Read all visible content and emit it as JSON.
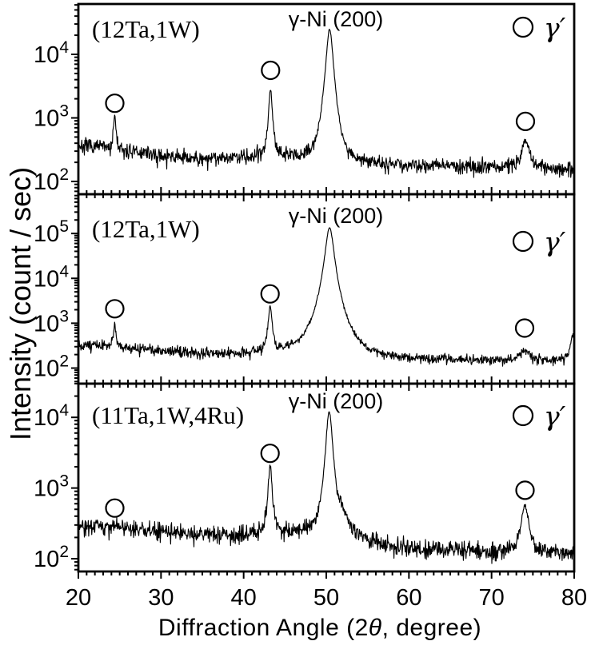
{
  "figure": {
    "xlabel_prefix": "Diffraction Angle (2",
    "xlabel_theta": "θ",
    "xlabel_suffix": ", degree)",
    "ylabel": "Intensity (count / sec)"
  },
  "styles": {
    "background": "#ffffff",
    "line_color": "#000000"
  },
  "chart_data": {
    "type": "line",
    "title": "",
    "xlabel": "Diffraction Angle (2θ, degree)",
    "ylabel": "Intensity (count / sec)",
    "xlim": [
      20,
      80
    ],
    "x_major_ticks": [
      20,
      30,
      40,
      50,
      60,
      70,
      80
    ],
    "x_minor_tick_step": 1,
    "y_scale": "log",
    "grid": false,
    "legend_position": "top-right-inside",
    "panels": [
      {
        "label": "(12Ta,1W)",
        "peak_annotation": "γ-Ni (200)",
        "legend_label": "γ′",
        "legend_marker": "open-circle",
        "ylim": [
          63,
          62000
        ],
        "y_major_tick_exponents": [
          2,
          3,
          4
        ],
        "baseline_points": [
          [
            20,
            370
          ],
          [
            23,
            345
          ],
          [
            26,
            300
          ],
          [
            30,
            252
          ],
          [
            34,
            232
          ],
          [
            38,
            240
          ],
          [
            41,
            255
          ],
          [
            44,
            258
          ],
          [
            46,
            245
          ],
          [
            48,
            230
          ],
          [
            50,
            215
          ],
          [
            53,
            205
          ],
          [
            57,
            190
          ],
          [
            62,
            180
          ],
          [
            68,
            176
          ],
          [
            72,
            170
          ],
          [
            76,
            162
          ],
          [
            80,
            158
          ]
        ],
        "peaks": [
          {
            "center": 24.4,
            "amplitude": 820,
            "fwhm": 0.3,
            "tail_power": 1.2
          },
          {
            "center": 43.25,
            "amplitude": 2550,
            "fwhm": 0.45,
            "tail_power": 1.3
          },
          {
            "center": 50.4,
            "amplitude": 24500,
            "fwhm": 0.85,
            "tail_power": 1.6
          },
          {
            "center": 74.1,
            "amplitude": 270,
            "fwhm": 1.1,
            "tail_power": 1.3
          }
        ],
        "gamma_prime_markers": [
          {
            "x": 24.4,
            "y": 1700
          },
          {
            "x": 43.25,
            "y": 5600
          },
          {
            "x": 74.1,
            "y": 880
          }
        ],
        "noise_sigma_decades": 0.05,
        "noise_seed": 7
      },
      {
        "label": "(12Ta,1W)",
        "peak_annotation": "γ-Ni (200)",
        "legend_label": "γ′",
        "legend_marker": "open-circle",
        "ylim": [
          45,
          750000
        ],
        "y_major_tick_exponents": [
          2,
          3,
          4,
          5
        ],
        "baseline_points": [
          [
            20,
            335
          ],
          [
            23,
            318
          ],
          [
            26,
            282
          ],
          [
            30,
            248
          ],
          [
            34,
            222
          ],
          [
            38,
            214
          ],
          [
            41,
            222
          ],
          [
            44,
            230
          ],
          [
            46,
            222
          ],
          [
            48,
            210
          ],
          [
            50,
            196
          ],
          [
            53,
            184
          ],
          [
            57,
            168
          ],
          [
            62,
            158
          ],
          [
            68,
            151
          ],
          [
            72,
            149
          ],
          [
            76,
            147
          ],
          [
            80,
            150
          ]
        ],
        "peaks": [
          {
            "center": 24.4,
            "amplitude": 680,
            "fwhm": 0.3,
            "tail_power": 1.2
          },
          {
            "center": 43.2,
            "amplitude": 2050,
            "fwhm": 0.45,
            "tail_power": 1.3
          },
          {
            "center": 50.4,
            "amplitude": 135000,
            "fwhm": 0.95,
            "tail_power": 1.55
          },
          {
            "center": 74.0,
            "amplitude": 110,
            "fwhm": 1.3,
            "tail_power": 1.3
          },
          {
            "center": 79.8,
            "amplitude": 370,
            "fwhm": 0.6,
            "tail_power": 1.3
          }
        ],
        "gamma_prime_markers": [
          {
            "x": 24.4,
            "y": 2100
          },
          {
            "x": 43.2,
            "y": 4500
          },
          {
            "x": 74.0,
            "y": 780
          }
        ],
        "noise_sigma_decades": 0.05,
        "noise_seed": 13
      },
      {
        "label": "(11Ta,1W,4Ru)",
        "peak_annotation": "γ-Ni (200)",
        "legend_label": "γ′",
        "legend_marker": "open-circle",
        "ylim": [
          66,
          30000
        ],
        "y_major_tick_exponents": [
          2,
          3,
          4
        ],
        "baseline_points": [
          [
            20,
            295
          ],
          [
            23,
            286
          ],
          [
            26,
            262
          ],
          [
            30,
            240
          ],
          [
            34,
            222
          ],
          [
            38,
            216
          ],
          [
            41,
            224
          ],
          [
            44,
            236
          ],
          [
            46,
            240
          ],
          [
            48,
            240
          ],
          [
            50,
            228
          ],
          [
            52,
            208
          ],
          [
            55,
            172
          ],
          [
            58,
            150
          ],
          [
            62,
            138
          ],
          [
            66,
            132
          ],
          [
            70,
            129
          ],
          [
            74,
            131
          ],
          [
            77,
            127
          ],
          [
            80,
            125
          ]
        ],
        "peaks": [
          {
            "center": 24.4,
            "amplitude": 50,
            "fwhm": 0.9,
            "tail_power": 1.2
          },
          {
            "center": 43.2,
            "amplitude": 1800,
            "fwhm": 0.5,
            "tail_power": 1.3
          },
          {
            "center": 50.35,
            "amplitude": 11800,
            "fwhm": 0.8,
            "tail_power": 1.55
          },
          {
            "center": 51.9,
            "amplitude": 230,
            "fwhm": 1.8,
            "tail_power": 1.3
          },
          {
            "center": 74.05,
            "amplitude": 430,
            "fwhm": 1.0,
            "tail_power": 1.3
          }
        ],
        "gamma_prime_markers": [
          {
            "x": 24.4,
            "y": 520
          },
          {
            "x": 43.2,
            "y": 3100
          },
          {
            "x": 74.05,
            "y": 930
          }
        ],
        "noise_sigma_decades": 0.055,
        "noise_seed": 21
      }
    ]
  }
}
